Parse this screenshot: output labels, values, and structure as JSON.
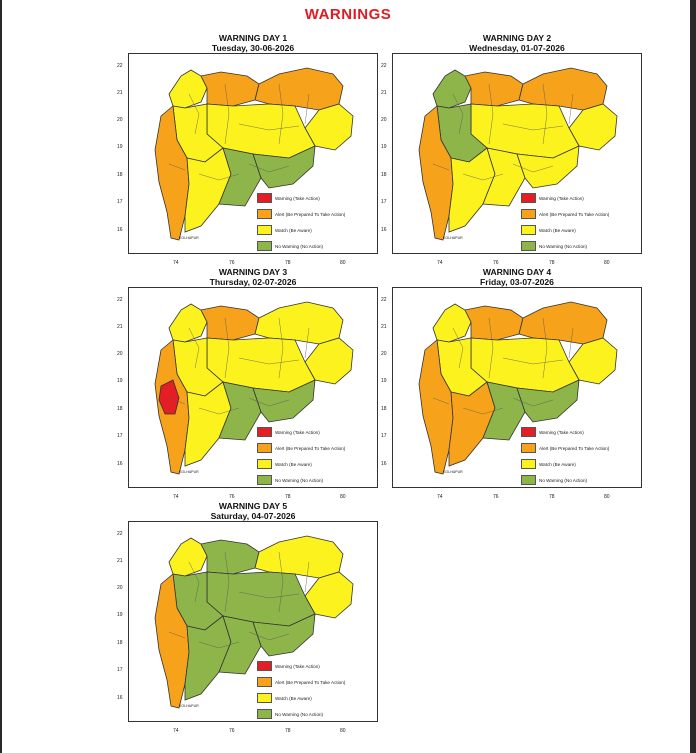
{
  "page": {
    "title": "WARNINGS"
  },
  "colors": {
    "warning": "#e31e24",
    "alert": "#f7a21b",
    "watch": "#fcf21e",
    "no_warning": "#8db54a",
    "border": "#333333",
    "title": "#e11b22"
  },
  "legend": [
    {
      "key": "warning",
      "label": "Warning (Take Action)"
    },
    {
      "key": "alert",
      "label": "Alert (Be Prepared To Take Action)"
    },
    {
      "key": "watch",
      "label": "Watch (Be Aware)"
    },
    {
      "key": "no_warning",
      "label": "No Warning (No Action)"
    }
  ],
  "axis": {
    "y_ticks": [
      "22",
      "21",
      "20",
      "19",
      "18",
      "17",
      "16"
    ],
    "x_ticks": [
      "74",
      "76",
      "78",
      "80"
    ]
  },
  "note_label": "KOLHAPUR",
  "panels": [
    {
      "title": "WARNING DAY 1",
      "date": "Tuesday, 30-06-2026",
      "zones": {
        "northwest": "watch",
        "north": "alert",
        "northeast": "alert",
        "west": "watch",
        "central": "watch",
        "east": "watch",
        "coast": "alert",
        "southwest": "watch",
        "south": "no_warning",
        "southeast": "no_warning"
      }
    },
    {
      "title": "WARNING DAY 2",
      "date": "Wednesday, 01-07-2026",
      "zones": {
        "northwest": "no_warning",
        "north": "alert",
        "northeast": "alert",
        "west": "no_warning",
        "central": "watch",
        "east": "watch",
        "coast": "alert",
        "southwest": "watch",
        "south": "watch",
        "southeast": "watch"
      }
    },
    {
      "title": "WARNING DAY 3",
      "date": "Thursday, 02-07-2026",
      "zones": {
        "northwest": "watch",
        "north": "alert",
        "northeast": "watch",
        "west": "watch",
        "central": "watch",
        "east": "watch",
        "coast": "alert",
        "southwest": "watch",
        "south": "no_warning",
        "southeast": "no_warning",
        "coast_mid": "warning"
      }
    },
    {
      "title": "WARNING DAY 4",
      "date": "Friday, 03-07-2026",
      "zones": {
        "northwest": "watch",
        "north": "alert",
        "northeast": "alert",
        "west": "watch",
        "central": "watch",
        "east": "watch",
        "coast": "alert",
        "southwest": "alert",
        "south": "no_warning",
        "southeast": "no_warning"
      }
    },
    {
      "title": "WARNING DAY 5",
      "date": "Saturday, 04-07-2026",
      "zones": {
        "northwest": "watch",
        "north": "no_warning",
        "northeast": "watch",
        "west": "no_warning",
        "central": "no_warning",
        "east": "watch",
        "coast": "alert",
        "southwest": "no_warning",
        "south": "no_warning",
        "southeast": "no_warning"
      }
    }
  ]
}
